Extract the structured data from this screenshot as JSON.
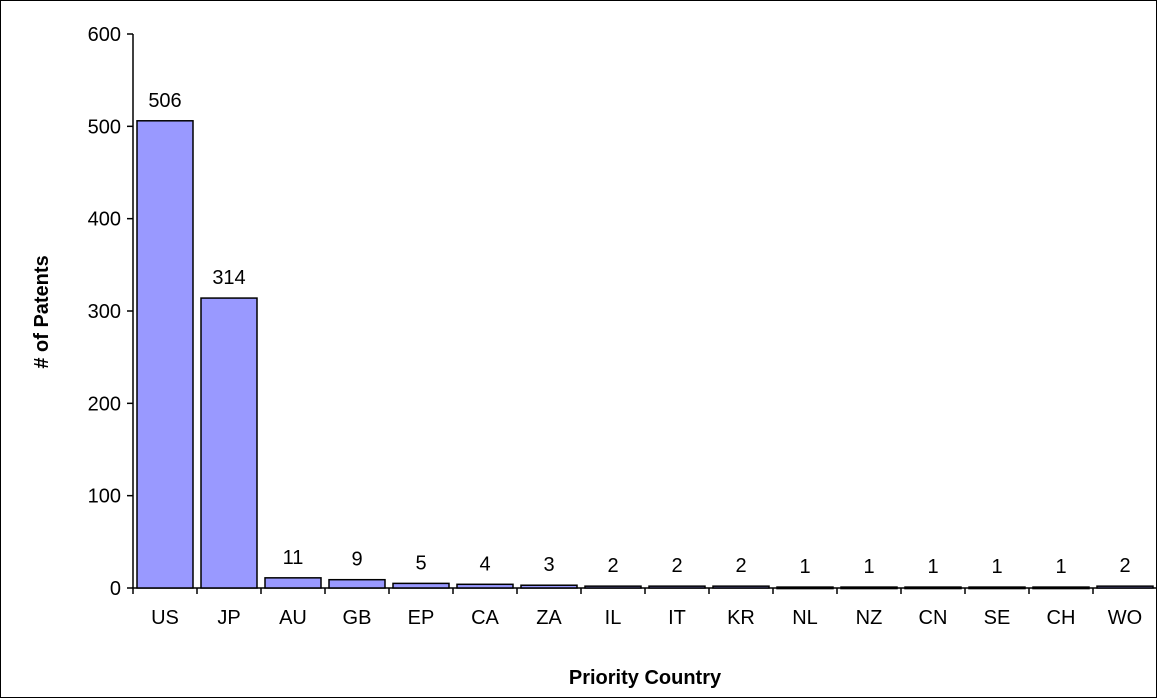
{
  "chart_data": {
    "type": "bar",
    "title": "",
    "xlabel": "Priority Country",
    "ylabel": "# of Patents",
    "categories": [
      "US",
      "JP",
      "AU",
      "GB",
      "EP",
      "CA",
      "ZA",
      "IL",
      "IT",
      "KR",
      "NL",
      "NZ",
      "CN",
      "SE",
      "CH",
      "WO"
    ],
    "values": [
      506,
      314,
      11,
      9,
      5,
      4,
      3,
      2,
      2,
      2,
      1,
      1,
      1,
      1,
      1,
      2
    ],
    "data_labels": [
      "506",
      "314",
      "11",
      "9",
      "5",
      "4",
      "3",
      "2",
      "2",
      "2",
      "1",
      "1",
      "1",
      "1",
      "1",
      "2"
    ],
    "ylim": [
      0,
      600
    ],
    "yticks": [
      0,
      100,
      200,
      300,
      400,
      500,
      600
    ],
    "ytick_labels": [
      "0",
      "100",
      "200",
      "300",
      "400",
      "500",
      "600"
    ],
    "grid": false,
    "legend": "none",
    "bar_color": "#9999ff",
    "bar_outline_color": "#000000"
  }
}
